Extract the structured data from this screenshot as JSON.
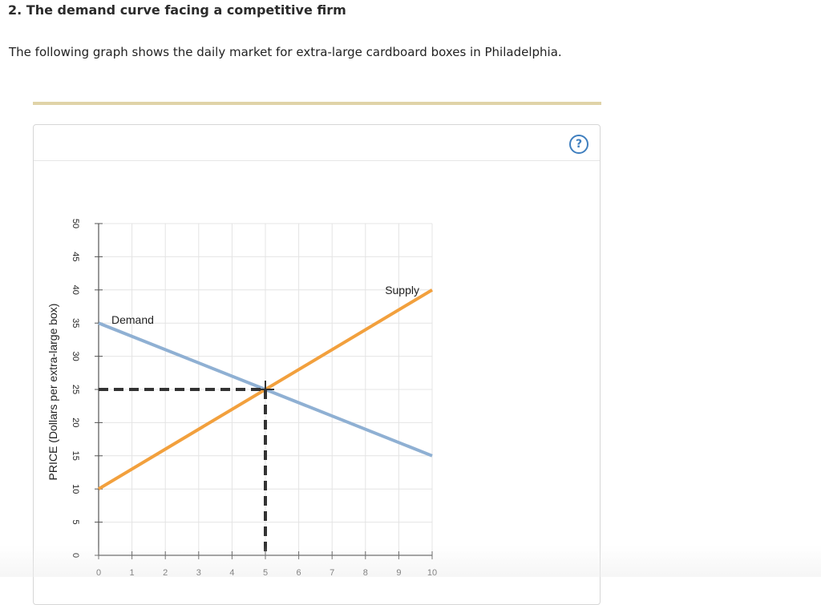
{
  "question": {
    "title": "2. The demand curve facing a competitive firm",
    "intro": "The following graph shows the daily market for extra-large cardboard boxes in Philadelphia."
  },
  "help": {
    "icon": "help-icon",
    "label": "?"
  },
  "colors": {
    "demand": "#8fb0d3",
    "supply": "#f2a03d",
    "guide": "#333333",
    "grid": "#e4e4e4",
    "rule": "#e0d3a8"
  },
  "chart_data": {
    "type": "line",
    "title": "",
    "xlabel": "",
    "ylabel": "PRICE (Dollars per extra-large box)",
    "xlim": [
      0,
      10
    ],
    "ylim": [
      0,
      50
    ],
    "xticks": [
      0,
      1,
      2,
      3,
      4,
      5,
      6,
      7,
      8,
      9,
      10
    ],
    "yticks": [
      0,
      5,
      10,
      15,
      20,
      25,
      30,
      35,
      40,
      45,
      50
    ],
    "grid": true,
    "series": [
      {
        "name": "Demand",
        "color": "#8fb0d3",
        "points": [
          [
            0,
            35
          ],
          [
            10,
            15
          ]
        ]
      },
      {
        "name": "Supply",
        "color": "#f2a03d",
        "points": [
          [
            0,
            10
          ],
          [
            10,
            40
          ]
        ]
      }
    ],
    "equilibrium": {
      "x": 5,
      "y": 25
    }
  }
}
